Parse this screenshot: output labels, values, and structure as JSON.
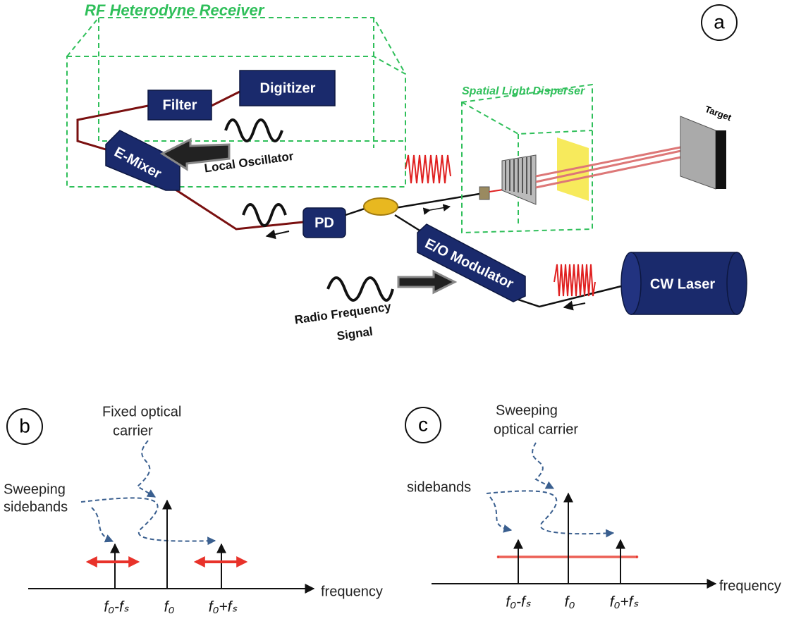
{
  "panel_a": {
    "label": "a",
    "rf_receiver": "RF Heterodyne Receiver",
    "filter": "Filter",
    "digitizer": "Digitizer",
    "e_mixer": "E-Mixer",
    "local_oscillator": "Local Oscillator",
    "pd": "PD",
    "spatial_light_disperser": "Spatial Light Disperser",
    "target": "Target",
    "eo_modulator": "E/O Modulator",
    "cw_laser": "CW Laser",
    "radio_frequency_signal": [
      "Radio Frequency",
      "Signal"
    ]
  },
  "panel_b": {
    "label": "b",
    "carrier_note": [
      "Fixed optical",
      "carrier"
    ],
    "sideband_note": [
      "Sweeping",
      "sidebands"
    ],
    "axis_label": "frequency",
    "ticks": [
      "f₀-fₛ",
      "f₀",
      "f₀+fₛ"
    ]
  },
  "panel_c": {
    "label": "c",
    "carrier_note": [
      "Sweeping",
      "optical carrier"
    ],
    "sideband_note": "sidebands",
    "axis_label": "frequency",
    "ticks": [
      "f₀-fₛ",
      "f₀",
      "f₀+fₛ"
    ]
  }
}
